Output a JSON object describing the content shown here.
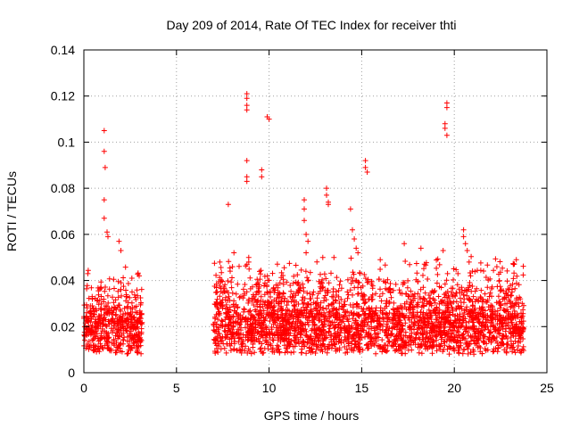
{
  "chart_data": {
    "type": "scatter",
    "title": "Day 209 of 2014, Rate Of TEC Index for receiver thti",
    "xlabel": "GPS time / hours",
    "ylabel": "ROTI / TECUs",
    "xlim": [
      0,
      25
    ],
    "ylim": [
      0,
      0.14
    ],
    "x_ticks": [
      0,
      5,
      10,
      15,
      20,
      25
    ],
    "x_tick_labels": [
      "0",
      "5",
      "10",
      "15",
      "20",
      "25"
    ],
    "y_ticks": [
      0,
      0.02,
      0.04,
      0.06,
      0.08,
      0.1,
      0.12,
      0.14
    ],
    "y_tick_labels": [
      "0",
      "0.02",
      "0.04",
      "0.06",
      "0.08",
      "0.1",
      "0.12",
      "0.14"
    ],
    "grid": true,
    "marker": "plus",
    "color": "#ff0000",
    "series": [
      {
        "name": "ROTI",
        "segments": [
          {
            "x_start": 0.0,
            "x_end": 3.15,
            "baseline": 0.016,
            "spread": 0.016
          },
          {
            "x_start": 7.0,
            "x_end": 23.75,
            "baseline": 0.017,
            "spread": 0.018
          }
        ],
        "peaks": [
          {
            "x": 1.1,
            "y": 0.105
          },
          {
            "x": 1.1,
            "y": 0.096
          },
          {
            "x": 1.15,
            "y": 0.089
          },
          {
            "x": 1.1,
            "y": 0.075
          },
          {
            "x": 1.1,
            "y": 0.067
          },
          {
            "x": 1.25,
            "y": 0.061
          },
          {
            "x": 1.3,
            "y": 0.059
          },
          {
            "x": 1.9,
            "y": 0.057
          },
          {
            "x": 2.0,
            "y": 0.053
          },
          {
            "x": 7.8,
            "y": 0.073
          },
          {
            "x": 8.1,
            "y": 0.052
          },
          {
            "x": 8.8,
            "y": 0.121
          },
          {
            "x": 8.8,
            "y": 0.119
          },
          {
            "x": 8.8,
            "y": 0.116
          },
          {
            "x": 8.8,
            "y": 0.114
          },
          {
            "x": 8.8,
            "y": 0.092
          },
          {
            "x": 8.8,
            "y": 0.085
          },
          {
            "x": 8.8,
            "y": 0.083
          },
          {
            "x": 8.9,
            "y": 0.05
          },
          {
            "x": 8.9,
            "y": 0.048
          },
          {
            "x": 9.6,
            "y": 0.088
          },
          {
            "x": 9.6,
            "y": 0.085
          },
          {
            "x": 9.9,
            "y": 0.111
          },
          {
            "x": 10.0,
            "y": 0.11
          },
          {
            "x": 11.9,
            "y": 0.075
          },
          {
            "x": 11.9,
            "y": 0.071
          },
          {
            "x": 11.9,
            "y": 0.066
          },
          {
            "x": 12.0,
            "y": 0.06
          },
          {
            "x": 12.1,
            "y": 0.057
          },
          {
            "x": 12.0,
            "y": 0.052
          },
          {
            "x": 12.9,
            "y": 0.05
          },
          {
            "x": 13.1,
            "y": 0.08
          },
          {
            "x": 13.1,
            "y": 0.077
          },
          {
            "x": 13.2,
            "y": 0.074
          },
          {
            "x": 13.2,
            "y": 0.073
          },
          {
            "x": 13.5,
            "y": 0.05
          },
          {
            "x": 14.4,
            "y": 0.071
          },
          {
            "x": 14.5,
            "y": 0.062
          },
          {
            "x": 14.6,
            "y": 0.058
          },
          {
            "x": 14.7,
            "y": 0.054
          },
          {
            "x": 14.8,
            "y": 0.052
          },
          {
            "x": 15.2,
            "y": 0.092
          },
          {
            "x": 15.2,
            "y": 0.089
          },
          {
            "x": 15.3,
            "y": 0.087
          },
          {
            "x": 16.0,
            "y": 0.049
          },
          {
            "x": 17.3,
            "y": 0.056
          },
          {
            "x": 18.2,
            "y": 0.054
          },
          {
            "x": 19.6,
            "y": 0.117
          },
          {
            "x": 19.6,
            "y": 0.115
          },
          {
            "x": 19.5,
            "y": 0.108
          },
          {
            "x": 19.5,
            "y": 0.106
          },
          {
            "x": 19.6,
            "y": 0.103
          },
          {
            "x": 19.4,
            "y": 0.053
          },
          {
            "x": 20.5,
            "y": 0.062
          },
          {
            "x": 20.5,
            "y": 0.059
          },
          {
            "x": 20.6,
            "y": 0.056
          },
          {
            "x": 20.7,
            "y": 0.053
          },
          {
            "x": 20.8,
            "y": 0.048
          },
          {
            "x": 22.3,
            "y": 0.046
          },
          {
            "x": 23.2,
            "y": 0.047
          }
        ]
      }
    ]
  }
}
